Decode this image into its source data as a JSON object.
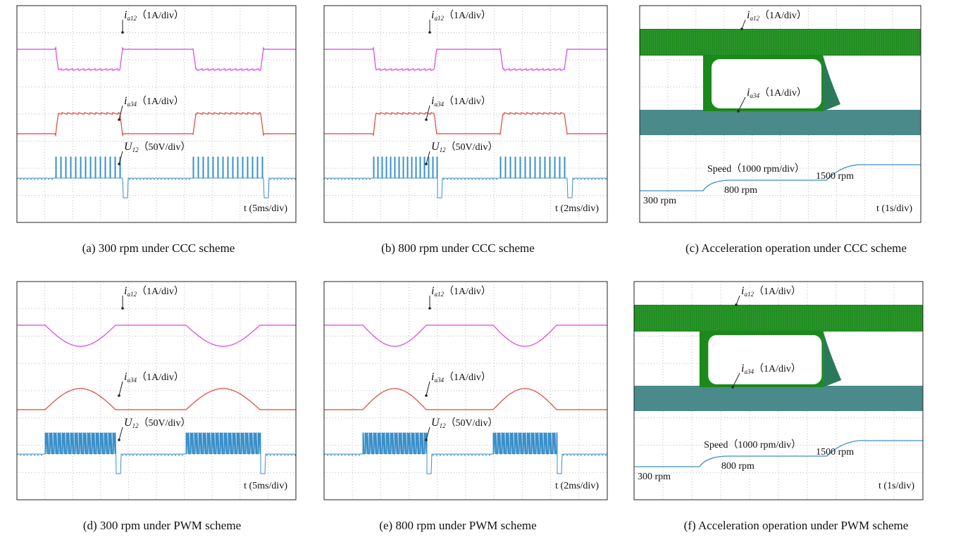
{
  "panels": [
    {
      "caption": "(a) 300 rpm under CCC scheme",
      "labels": [
        {
          "symbol": "i",
          "subscript": "a12",
          "unit": "（1A/div）"
        },
        {
          "symbol": "i",
          "subscript": "a34",
          "unit": "（1A/div）"
        },
        {
          "symbol": "U",
          "subscript": "12",
          "unit": "（50V/div）"
        }
      ],
      "time": "t (5ms/div)"
    },
    {
      "caption": "(b) 800 rpm under CCC scheme",
      "labels": [
        {
          "symbol": "i",
          "subscript": "a12",
          "unit": "（1A/div）"
        },
        {
          "symbol": "i",
          "subscript": "a34",
          "unit": "（1A/div）"
        },
        {
          "symbol": "U",
          "subscript": "12",
          "unit": "（50V/div）"
        }
      ],
      "time": "t (2ms/div)"
    },
    {
      "caption": "(c) Acceleration operation under CCC scheme",
      "labels": [
        {
          "symbol": "i",
          "subscript": "a12",
          "unit": "（1A/div）"
        },
        {
          "symbol": "i",
          "subscript": "a34",
          "unit": "（1A/div）"
        }
      ],
      "speed_labels": [
        "Speed（1000 rpm/div）",
        "300 rpm",
        "800 rpm",
        "1500 rpm"
      ],
      "time": "t (1s/div)"
    },
    {
      "caption": "(d) 300 rpm under PWM scheme",
      "labels": [
        {
          "symbol": "i",
          "subscript": "a12",
          "unit": "（1A/div）"
        },
        {
          "symbol": "i",
          "subscript": "a34",
          "unit": "（1A/div）"
        },
        {
          "symbol": "U",
          "subscript": "12",
          "unit": "（50V/div）"
        }
      ],
      "time": "t (5ms/div)"
    },
    {
      "caption": "(e) 800 rpm under PWM scheme",
      "labels": [
        {
          "symbol": "i",
          "subscript": "a12",
          "unit": "（1A/div）"
        },
        {
          "symbol": "i",
          "subscript": "a34",
          "unit": "（1A/div）"
        },
        {
          "symbol": "U",
          "subscript": "12",
          "unit": "（50V/div）"
        }
      ],
      "time": "t (2ms/div)"
    },
    {
      "caption": "(f) Acceleration operation under PWM scheme",
      "labels": [
        {
          "symbol": "i",
          "subscript": "a12",
          "unit": "（1A/div）"
        },
        {
          "symbol": "i",
          "subscript": "a34",
          "unit": "（1A/div）"
        }
      ],
      "speed_labels": [
        "Speed（1000 rpm/div）",
        "300 rpm",
        "800 rpm",
        "1500 rpm"
      ],
      "time": "t (1s/div)"
    }
  ]
}
